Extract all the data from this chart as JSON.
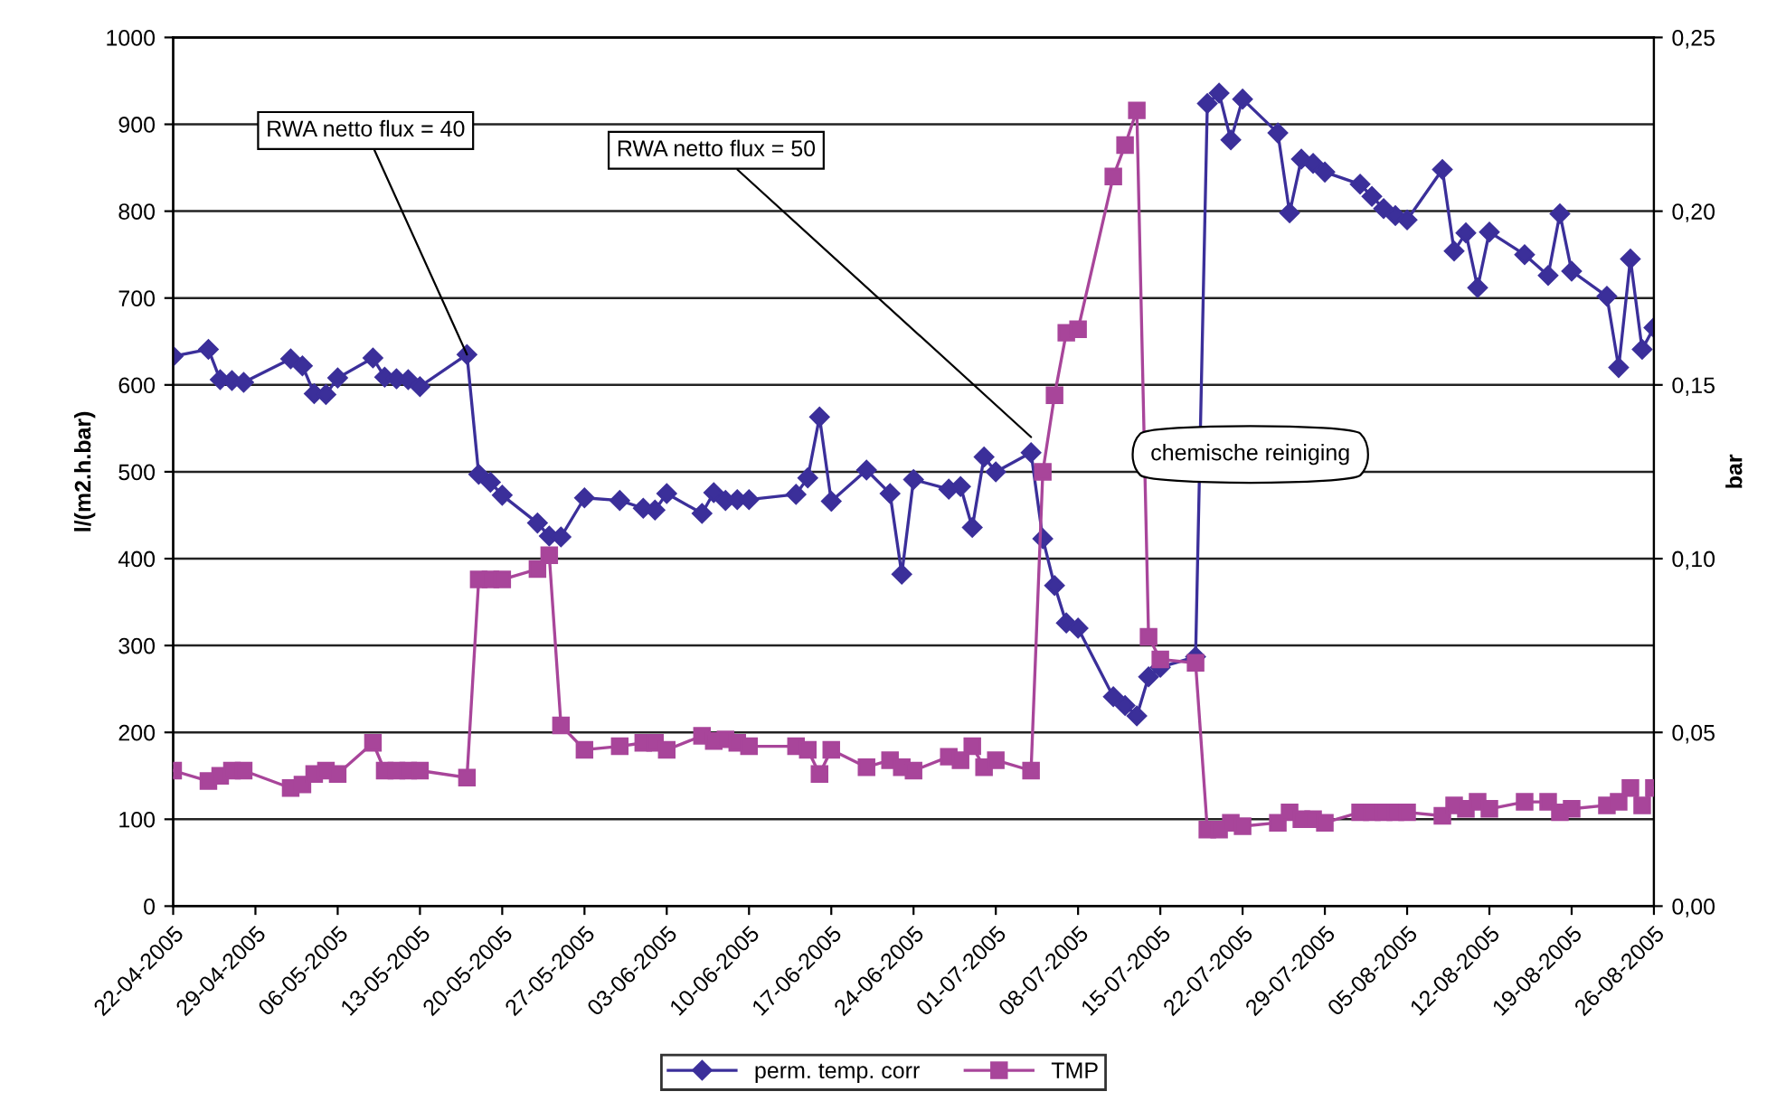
{
  "chart_data": {
    "type": "line",
    "ylabel": "l/(m2.h.bar)",
    "y2label": "bar",
    "x": [
      "2005-04-22",
      "2005-04-25",
      "2005-04-26",
      "2005-04-27",
      "2005-04-28",
      "2005-05-02",
      "2005-05-03",
      "2005-05-04",
      "2005-05-05",
      "2005-05-06",
      "2005-05-09",
      "2005-05-10",
      "2005-05-11",
      "2005-05-12",
      "2005-05-13",
      "2005-05-17",
      "2005-05-18",
      "2005-05-19",
      "2005-05-20",
      "2005-05-23",
      "2005-05-24",
      "2005-05-25",
      "2005-05-27",
      "2005-05-30",
      "2005-06-01",
      "2005-06-02",
      "2005-06-03",
      "2005-06-06",
      "2005-06-07",
      "2005-06-08",
      "2005-06-09",
      "2005-06-10",
      "2005-06-14",
      "2005-06-15",
      "2005-06-16",
      "2005-06-17",
      "2005-06-20",
      "2005-06-22",
      "2005-06-23",
      "2005-06-24",
      "2005-06-27",
      "2005-06-28",
      "2005-06-29",
      "2005-06-30",
      "2005-07-01",
      "2005-07-04",
      "2005-07-05",
      "2005-07-06",
      "2005-07-07",
      "2005-07-08",
      "2005-07-11",
      "2005-07-12",
      "2005-07-13",
      "2005-07-14",
      "2005-07-15",
      "2005-07-18",
      "2005-07-19",
      "2005-07-20",
      "2005-07-21",
      "2005-07-22",
      "2005-07-25",
      "2005-07-26",
      "2005-07-27",
      "2005-07-28",
      "2005-07-29",
      "2005-08-01",
      "2005-08-02",
      "2005-08-03",
      "2005-08-04",
      "2005-08-05",
      "2005-08-08",
      "2005-08-09",
      "2005-08-10",
      "2005-08-11",
      "2005-08-12",
      "2005-08-15",
      "2005-08-17",
      "2005-08-18",
      "2005-08-19",
      "2005-08-22",
      "2005-08-23",
      "2005-08-24",
      "2005-08-25",
      "2005-08-26"
    ],
    "series": [
      {
        "name": "perm. temp. corr",
        "color": "#3b2f9a",
        "marker": "diamond",
        "values": [
          633,
          641,
          606,
          605,
          603,
          630,
          622,
          590,
          589,
          608,
          631,
          609,
          607,
          606,
          598,
          635,
          497,
          488,
          473,
          441,
          426,
          425,
          470,
          467,
          458,
          456,
          475,
          452,
          476,
          467,
          468,
          468,
          474,
          493,
          563,
          466,
          502,
          475,
          382,
          491,
          480,
          483,
          436,
          517,
          500,
          522,
          423,
          369,
          326,
          320,
          241,
          231,
          219,
          264,
          275,
          287,
          924,
          936,
          882,
          929,
          890,
          798,
          860,
          855,
          845,
          831,
          817,
          803,
          795,
          790,
          848,
          754,
          775,
          712,
          776,
          750,
          726,
          797,
          731,
          702,
          620,
          745,
          641,
          666
        ]
      },
      {
        "name": "TMP",
        "color": "#a8459a",
        "marker": "square",
        "axis": "y2",
        "values": [
          0.039,
          0.036,
          0.0375,
          0.039,
          0.039,
          0.034,
          0.035,
          0.038,
          0.039,
          0.038,
          0.047,
          0.039,
          0.039,
          0.039,
          0.039,
          0.037,
          0.094,
          0.094,
          0.094,
          0.097,
          0.101,
          0.052,
          0.045,
          0.046,
          0.047,
          0.047,
          0.045,
          0.049,
          0.0475,
          0.048,
          0.047,
          0.046,
          0.046,
          0.045,
          0.038,
          0.045,
          0.04,
          0.042,
          0.04,
          0.039,
          0.043,
          0.042,
          0.046,
          0.04,
          0.042,
          0.039,
          0.125,
          0.147,
          0.165,
          0.166,
          0.21,
          0.219,
          0.229,
          0.0775,
          0.071,
          0.07,
          0.022,
          0.022,
          0.024,
          0.023,
          0.024,
          0.027,
          0.025,
          0.025,
          0.024,
          0.027,
          0.027,
          0.027,
          0.027,
          0.027,
          0.026,
          0.029,
          0.028,
          0.03,
          0.028,
          0.03,
          0.03,
          0.027,
          0.028,
          0.029,
          0.03,
          0.034,
          0.029,
          0.034
        ]
      }
    ],
    "xlim": [
      "2005-04-22",
      "2005-08-26"
    ],
    "xticks": [
      {
        "value": "2005-04-22",
        "label": "22-04-2005"
      },
      {
        "value": "2005-04-29",
        "label": "29-04-2005"
      },
      {
        "value": "2005-05-06",
        "label": "06-05-2005"
      },
      {
        "value": "2005-05-13",
        "label": "13-05-2005"
      },
      {
        "value": "2005-05-20",
        "label": "20-05-2005"
      },
      {
        "value": "2005-05-27",
        "label": "27-05-2005"
      },
      {
        "value": "2005-06-03",
        "label": "03-06-2005"
      },
      {
        "value": "2005-06-10",
        "label": "10-06-2005"
      },
      {
        "value": "2005-06-17",
        "label": "17-06-2005"
      },
      {
        "value": "2005-06-24",
        "label": "24-06-2005"
      },
      {
        "value": "2005-07-01",
        "label": "01-07-2005"
      },
      {
        "value": "2005-07-08",
        "label": "08-07-2005"
      },
      {
        "value": "2005-07-15",
        "label": "15-07-2005"
      },
      {
        "value": "2005-07-22",
        "label": "22-07-2005"
      },
      {
        "value": "2005-07-29",
        "label": "29-07-2005"
      },
      {
        "value": "2005-08-05",
        "label": "05-08-2005"
      },
      {
        "value": "2005-08-12",
        "label": "12-08-2005"
      },
      {
        "value": "2005-08-19",
        "label": "19-08-2005"
      },
      {
        "value": "2005-08-26",
        "label": "26-08-2005"
      }
    ],
    "ylim": [
      0,
      1000
    ],
    "yticks": [
      0,
      100,
      200,
      300,
      400,
      500,
      600,
      700,
      800,
      900,
      1000
    ],
    "y2lim": [
      0,
      0.25
    ],
    "y2ticks": [
      {
        "value": 0,
        "label": "0,00"
      },
      {
        "value": 0.05,
        "label": "0,05"
      },
      {
        "value": 0.1,
        "label": "0,10"
      },
      {
        "value": 0.15,
        "label": "0,15"
      },
      {
        "value": 0.2,
        "label": "0,20"
      },
      {
        "value": 0.25,
        "label": "0,25"
      }
    ],
    "grid": "y",
    "legend": "bottom",
    "line_style": "solid",
    "annotations": [
      {
        "text": "RWA netto flux = 40",
        "x": "2005-05-17",
        "y": 635
      },
      {
        "text": "RWA netto flux = 50",
        "x": "2005-07-04",
        "y": 540
      },
      "chemische reiniging"
    ]
  }
}
